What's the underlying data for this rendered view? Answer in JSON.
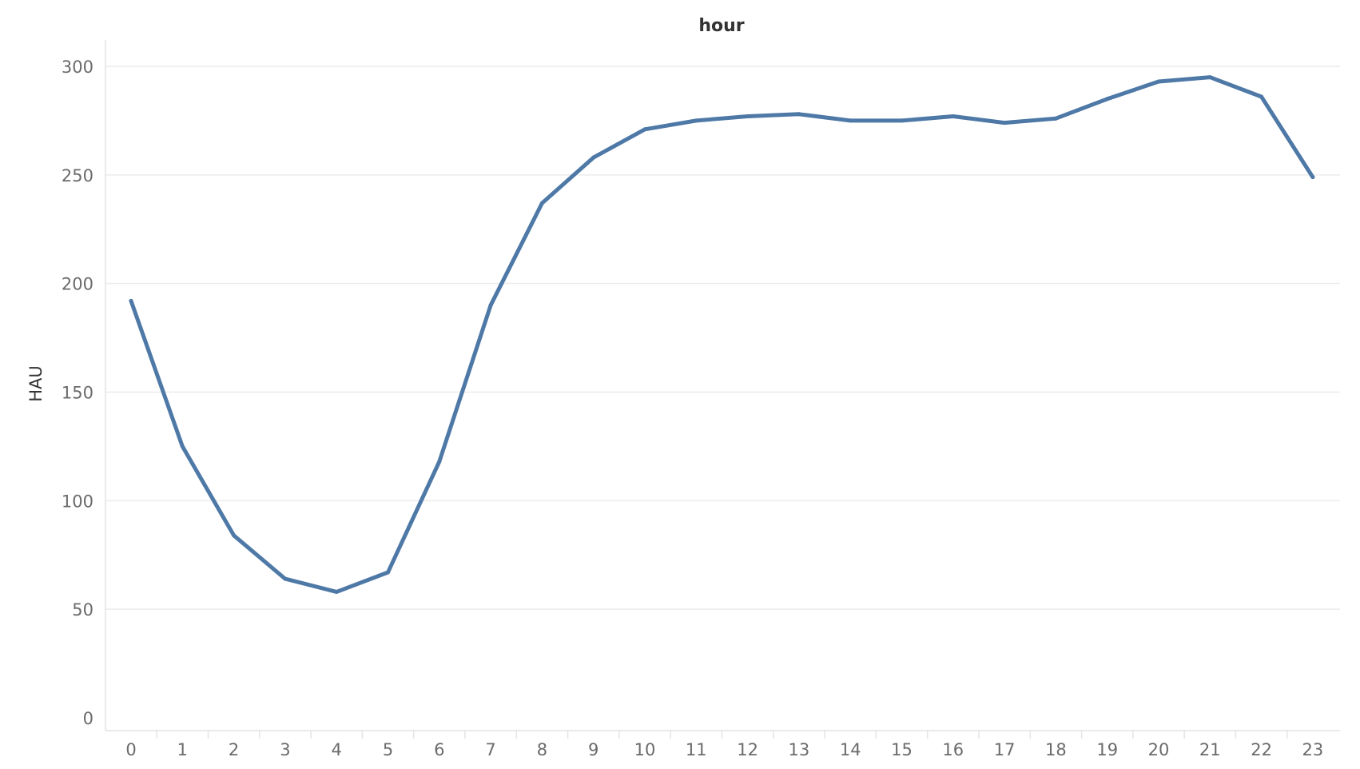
{
  "chart_data": {
    "type": "line",
    "title": "hour",
    "xlabel": "",
    "ylabel": "HAU",
    "categories": [
      "0",
      "1",
      "2",
      "3",
      "4",
      "5",
      "6",
      "7",
      "8",
      "9",
      "10",
      "11",
      "12",
      "13",
      "14",
      "15",
      "16",
      "17",
      "18",
      "19",
      "20",
      "21",
      "22",
      "23"
    ],
    "series": [
      {
        "values": [
          192,
          125,
          84,
          64,
          58,
          67,
          118,
          190,
          237,
          258,
          271,
          275,
          277,
          278,
          275,
          275,
          277,
          274,
          276,
          285,
          293,
          295,
          286,
          249
        ],
        "color": "#4e79a7"
      }
    ],
    "ylim": [
      0,
      300
    ],
    "yticks": [
      "0",
      "50",
      "100",
      "150",
      "200",
      "250",
      "300"
    ],
    "grid": true,
    "legend": "none"
  }
}
